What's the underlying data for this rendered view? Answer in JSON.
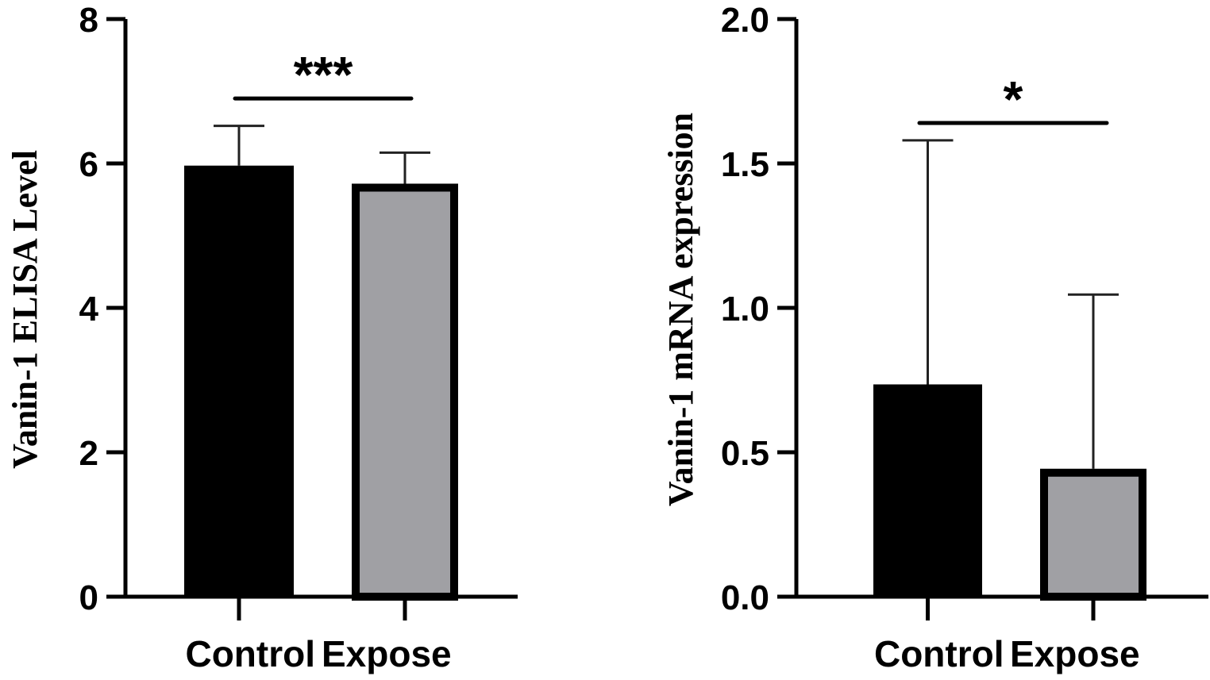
{
  "chart_data": [
    {
      "type": "bar",
      "title": "",
      "xlabel": "",
      "ylabel": "Vanin-1 ELISA Level",
      "categories": [
        "Control",
        "Expose"
      ],
      "values": [
        5.97,
        5.72
      ],
      "error_upper": [
        6.52,
        6.15
      ],
      "colors": [
        "#000000",
        "#a0a0a4"
      ],
      "ylim": [
        0,
        8
      ],
      "yticks": [
        0,
        2,
        4,
        6,
        8
      ],
      "ytick_labels": [
        "0",
        "2",
        "4",
        "6",
        "8"
      ],
      "significance": {
        "label": "***",
        "level": 6.9
      },
      "grid": false
    },
    {
      "type": "bar",
      "title": "",
      "xlabel": "",
      "ylabel": "Vanin-1 mRNA expression",
      "categories": [
        "Control",
        "Expose"
      ],
      "values": [
        0.735,
        0.443
      ],
      "error_upper": [
        1.58,
        1.046
      ],
      "colors": [
        "#000000",
        "#a0a0a4"
      ],
      "ylim": [
        0,
        2.0
      ],
      "yticks": [
        0,
        0.5,
        1.0,
        1.5,
        2.0
      ],
      "ytick_labels": [
        "0.0",
        "0.5",
        "1.0",
        "1.5",
        "2.0"
      ],
      "significance": {
        "label": "*",
        "level": 1.64
      },
      "grid": false
    }
  ]
}
